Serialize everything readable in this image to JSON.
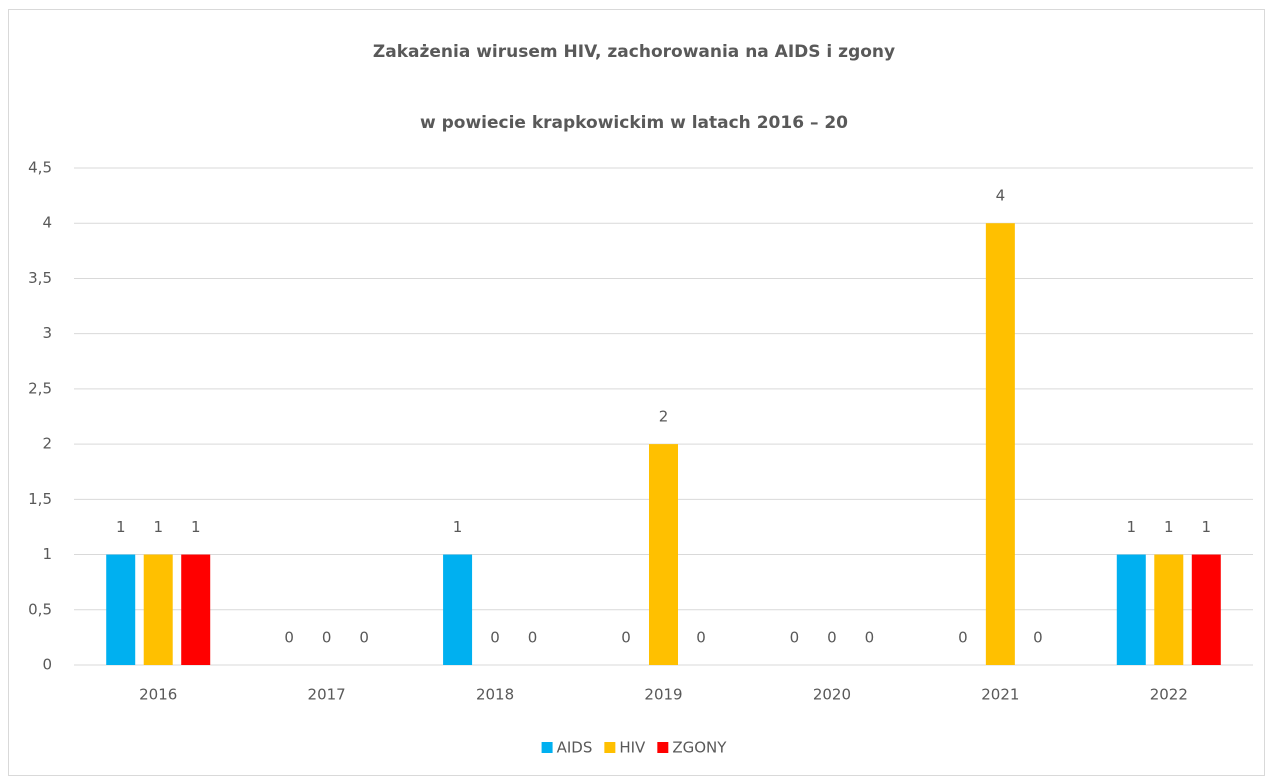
{
  "chart_data": {
    "type": "bar",
    "title": "Zakażenia wirusem HIV, zachorowania na AIDS i zgony",
    "subtitle": "w powiecie krapkowickim w latach 2016 – 20",
    "categories": [
      "2016",
      "2017",
      "2018",
      "2019",
      "2020",
      "2021",
      "2022"
    ],
    "series": [
      {
        "name": "AIDS",
        "color": "#00b0f0",
        "values": [
          1,
          0,
          1,
          0,
          0,
          0,
          1
        ]
      },
      {
        "name": "HIV",
        "color": "#ffc000",
        "values": [
          1,
          0,
          0,
          2,
          0,
          4,
          1
        ]
      },
      {
        "name": "ZGONY",
        "color": "#ff0000",
        "values": [
          1,
          0,
          0,
          0,
          0,
          0,
          1
        ]
      }
    ],
    "ylim": [
      0,
      4.5
    ],
    "yticks": [
      0,
      {
        "value": 0.5,
        "label": "0,5"
      },
      1,
      {
        "value": 1.5,
        "label": "1,5"
      },
      2,
      {
        "value": 2.5,
        "label": "2,5"
      },
      3,
      {
        "value": 3.5,
        "label": "3,5"
      },
      4,
      {
        "value": 4.5,
        "label": "4,5"
      }
    ],
    "grid": true,
    "legend": "bottom"
  }
}
